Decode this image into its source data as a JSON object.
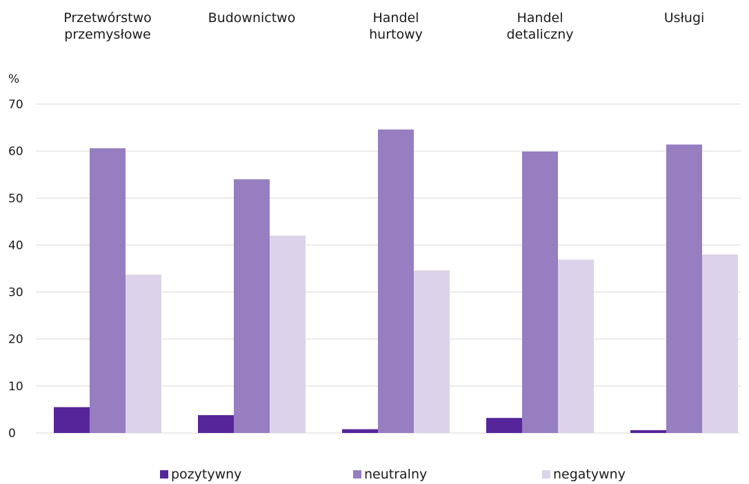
{
  "chart_data": {
    "type": "bar",
    "ylabel": "%",
    "ylim": [
      0,
      70
    ],
    "yticks": [
      0,
      10,
      20,
      30,
      40,
      50,
      60,
      70
    ],
    "grid": true,
    "legend_position": "bottom",
    "categories": [
      [
        "Przetwórstwo",
        "przemysłowe"
      ],
      [
        "Budownictwo"
      ],
      [
        "Handel",
        "hurtowy"
      ],
      [
        "Handel",
        "detaliczny"
      ],
      [
        "Usługi"
      ]
    ],
    "series": [
      {
        "name": "pozytywny",
        "color": "#56259a",
        "values": [
          5.5,
          3.8,
          0.8,
          3.2,
          0.6
        ]
      },
      {
        "name": "neutralny",
        "color": "#967ec1",
        "values": [
          60.6,
          54.0,
          64.6,
          59.9,
          61.4
        ]
      },
      {
        "name": "negatywny",
        "color": "#dcd3ea",
        "values": [
          33.7,
          42.0,
          34.6,
          36.9,
          38.0
        ]
      }
    ]
  }
}
